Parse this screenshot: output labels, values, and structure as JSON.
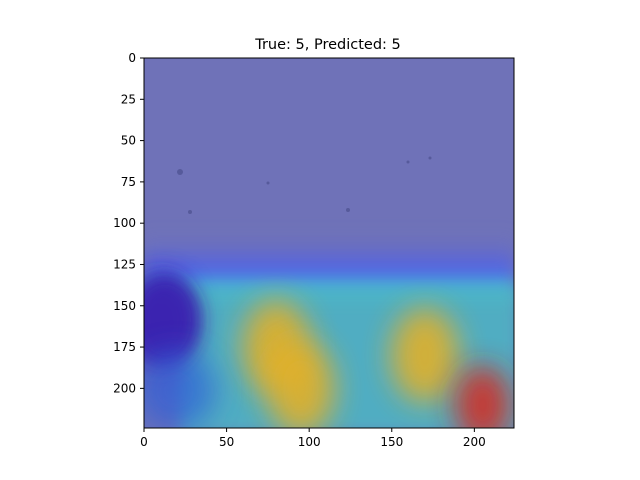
{
  "chart_data": {
    "type": "heatmap",
    "title": "True: 5, Predicted: 5",
    "xlabel": "",
    "ylabel": "",
    "xlim": [
      0,
      224
    ],
    "ylim": [
      224,
      0
    ],
    "x_ticks": [
      0,
      50,
      100,
      150,
      200
    ],
    "y_ticks": [
      0,
      25,
      50,
      75,
      100,
      125,
      150,
      175,
      200
    ],
    "x_tick_labels": [
      "0",
      "50",
      "100",
      "150",
      "200"
    ],
    "y_tick_labels": [
      "0",
      "25",
      "50",
      "75",
      "100",
      "125",
      "150",
      "175",
      "200"
    ],
    "grid": false,
    "colormap": "jet",
    "overlay": "Grad-CAM heatmap over microscope image",
    "colors": {
      "background_overlay": "#6f72b8",
      "low": "#3a22b0",
      "mid": "#3fc7d0",
      "high": "#e8b020",
      "peak": "#d8281e"
    },
    "hotspots": [
      {
        "x": 80,
        "y": 175,
        "intensity": 0.65
      },
      {
        "x": 95,
        "y": 200,
        "intensity": 0.7
      },
      {
        "x": 170,
        "y": 180,
        "intensity": 0.75
      },
      {
        "x": 205,
        "y": 210,
        "intensity": 1.0
      },
      {
        "x": 10,
        "y": 160,
        "intensity": 0.05
      }
    ]
  }
}
